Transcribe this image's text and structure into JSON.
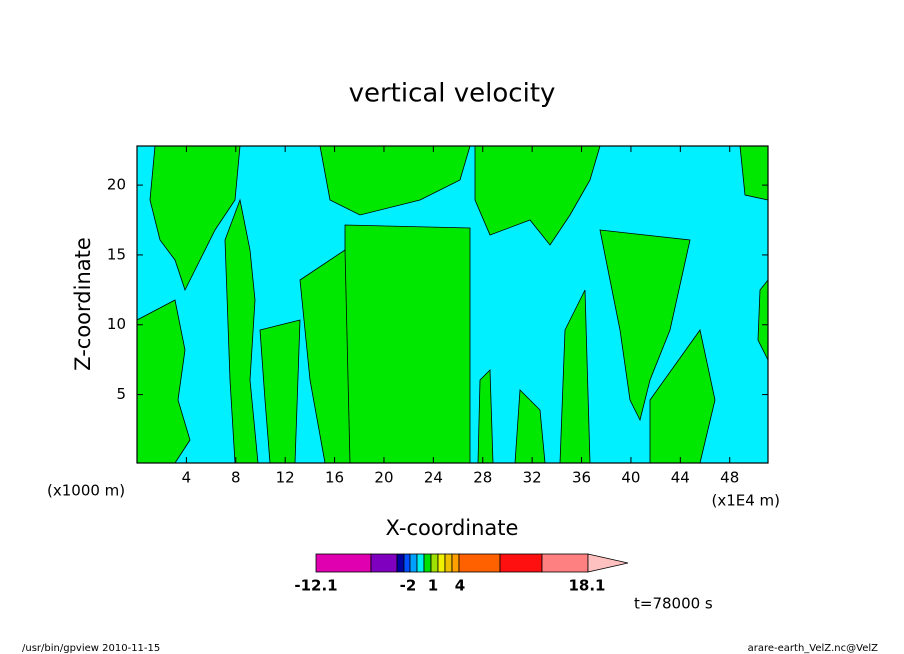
{
  "chart_data": {
    "type": "contour",
    "title": "vertical velocity",
    "xlabel": "X-coordinate",
    "ylabel": "Z-coordinate",
    "x_unit_left": "(x1000 m)",
    "x_unit_right": "(x1E4 m)",
    "xlim": [
      0,
      51.1
    ],
    "xticks": [
      4,
      8,
      12,
      16,
      20,
      24,
      28,
      32,
      36,
      40,
      44,
      48
    ],
    "ylim": [
      0.1,
      22.8
    ],
    "yticks": [
      5,
      10,
      15,
      20
    ],
    "colorbar": {
      "colors": [
        "#e000b0",
        "#8000c0",
        "#0000a0",
        "#0050ff",
        "#00a0ff",
        "#00f0f0",
        "#00e000",
        "#a0e000",
        "#f0f000",
        "#f0c000",
        "#ffa000",
        "#ff6000",
        "#ff1010",
        "#ff8080",
        "#ffc0c0"
      ],
      "labels": [
        -12.1,
        -2,
        1,
        4,
        18.1
      ]
    },
    "field_colors": {
      "negative": "#00f0ff",
      "positive": "#00e800"
    },
    "time_label": "t=78000 s",
    "footer_left": "/usr/bin/gpview  2010-11-15",
    "footer_right": "arare-earth_VelZ.nc@VelZ"
  }
}
